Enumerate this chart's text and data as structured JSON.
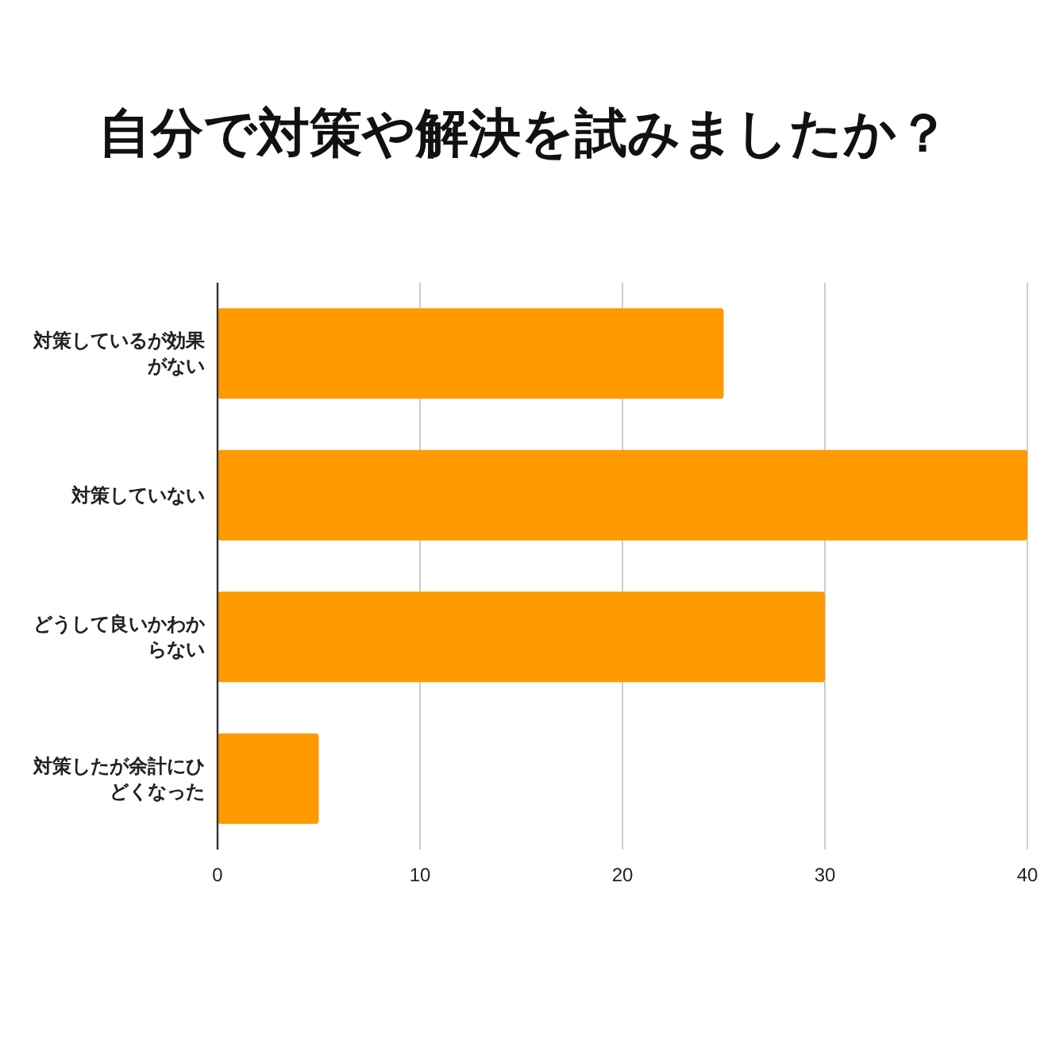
{
  "chart_data": {
    "type": "bar",
    "title": "自分で対策や解決を試みましたか？",
    "orientation": "horizontal",
    "categories": [
      "対策しているが効果がない",
      "対策していない",
      "どうして良いかわからない",
      "対策したが余計にひどくなった"
    ],
    "values": [
      25,
      40,
      30,
      5
    ],
    "color": "#ff9900",
    "xlim": [
      0,
      40
    ],
    "xticks": [
      0,
      10,
      20,
      30,
      40
    ],
    "grid": "x"
  }
}
